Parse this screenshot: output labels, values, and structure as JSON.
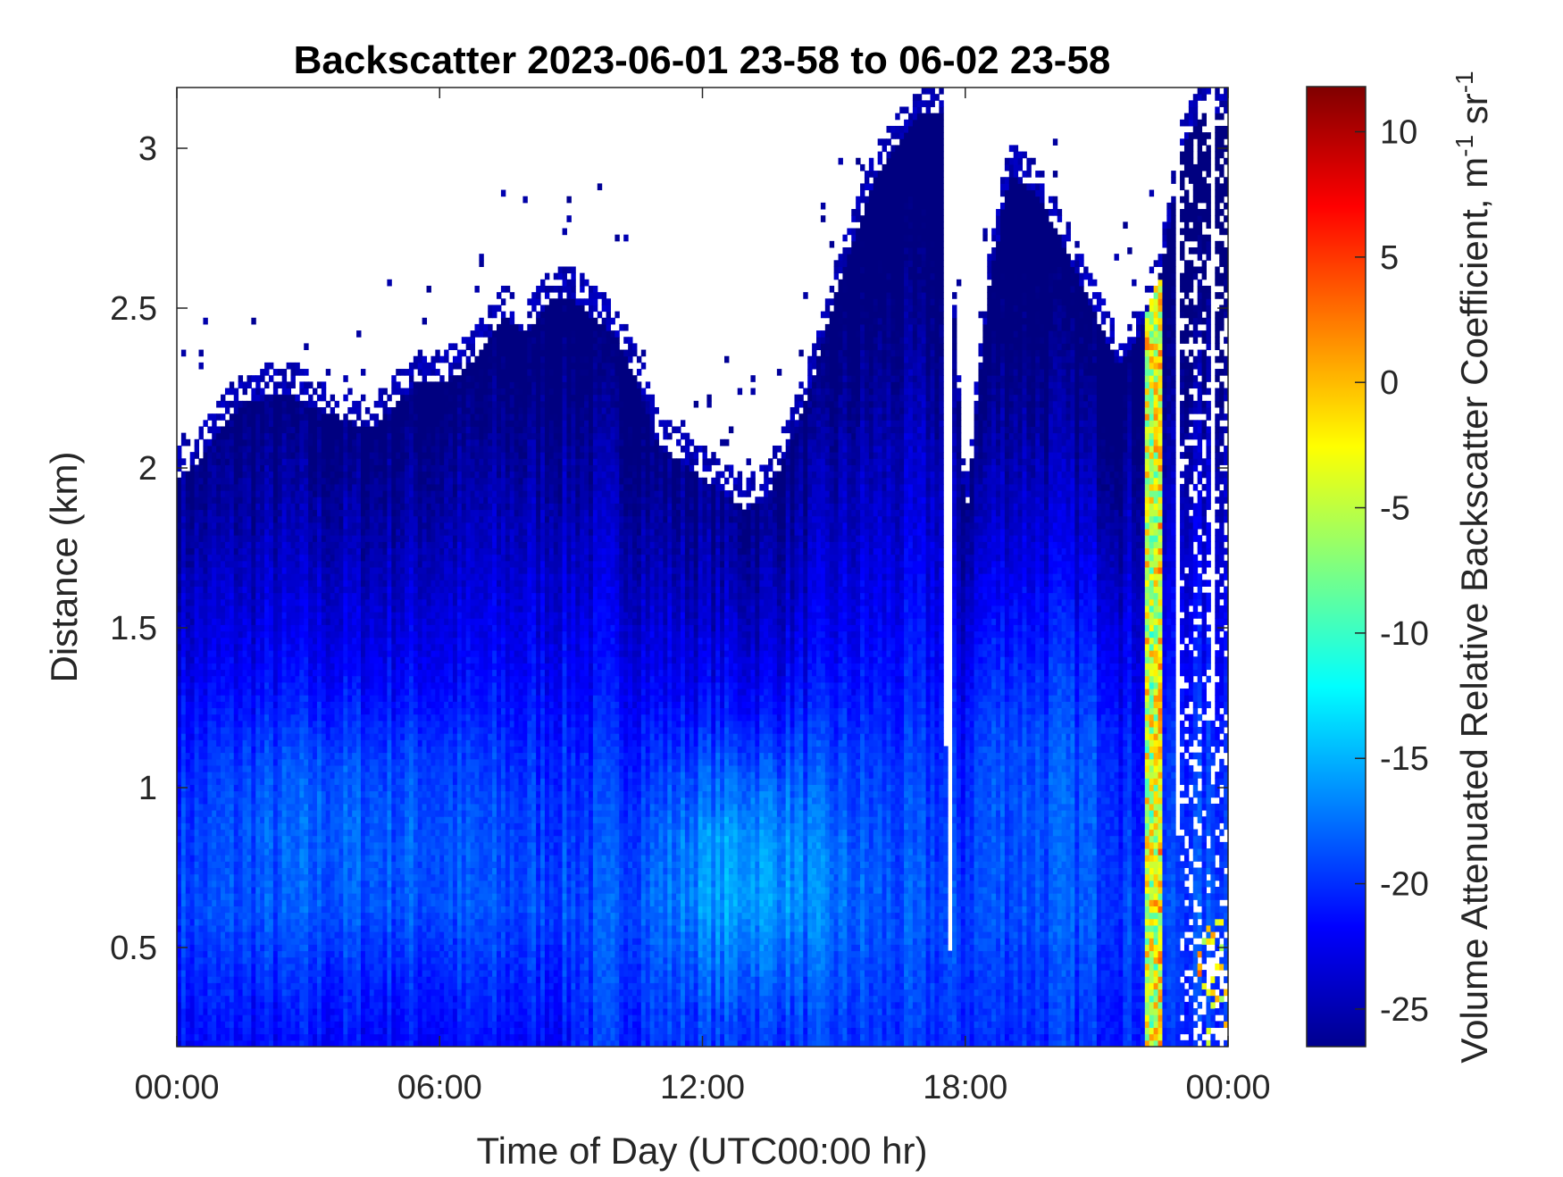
{
  "chart_data": {
    "type": "heatmap",
    "title": "Backscatter 2023-06-01 23-58 to 06-02 23-58",
    "xlabel": "Time of Day (UTC00:00 hr)",
    "ylabel": "Distance (km)",
    "xlim": [
      0,
      24
    ],
    "ylim": [
      0.19,
      3.19
    ],
    "x_ticks": [
      {
        "value": 0,
        "label": "00:00"
      },
      {
        "value": 6,
        "label": "06:00"
      },
      {
        "value": 12,
        "label": "12:00"
      },
      {
        "value": 18,
        "label": "18:00"
      },
      {
        "value": 24,
        "label": "00:00"
      }
    ],
    "y_ticks": [
      {
        "value": 0.5,
        "label": "0.5"
      },
      {
        "value": 1,
        "label": "1"
      },
      {
        "value": 1.5,
        "label": "1.5"
      },
      {
        "value": 2,
        "label": "2"
      },
      {
        "value": 2.5,
        "label": "2.5"
      },
      {
        "value": 3,
        "label": "3"
      }
    ],
    "colorbar": {
      "label": "Volume Attenuated Relative Backscatter Coefficient, m⁻¹ sr⁻¹",
      "label_main": "Volume Attenuated Relative Backscatter Coefficient, m",
      "label_sup1": "-1",
      "label_mid": " sr",
      "label_sup2": "-1",
      "colormap": "jet",
      "clim": [
        -26.5,
        11.8
      ],
      "ticks": [
        {
          "value": 10,
          "label": "10"
        },
        {
          "value": 5,
          "label": "5"
        },
        {
          "value": 0,
          "label": "0"
        },
        {
          "value": -5,
          "label": "-5"
        },
        {
          "value": -10,
          "label": "-10"
        },
        {
          "value": -15,
          "label": "-15"
        },
        {
          "value": -20,
          "label": "-20"
        },
        {
          "value": -25,
          "label": "-25"
        }
      ]
    },
    "grid": false,
    "signal_top_km": [
      [
        0,
        2.05
      ],
      [
        0.5,
        2.1
      ],
      [
        1,
        2.2
      ],
      [
        1.5,
        2.28
      ],
      [
        2,
        2.3
      ],
      [
        2.5,
        2.32
      ],
      [
        3,
        2.28
      ],
      [
        3.5,
        2.25
      ],
      [
        4,
        2.22
      ],
      [
        4.5,
        2.2
      ],
      [
        5,
        2.28
      ],
      [
        5.5,
        2.35
      ],
      [
        6,
        2.35
      ],
      [
        6.5,
        2.38
      ],
      [
        7,
        2.45
      ],
      [
        7.5,
        2.55
      ],
      [
        8,
        2.5
      ],
      [
        8.5,
        2.6
      ],
      [
        9,
        2.62
      ],
      [
        9.5,
        2.55
      ],
      [
        10,
        2.5
      ],
      [
        10.5,
        2.35
      ],
      [
        11,
        2.15
      ],
      [
        11.5,
        2.1
      ],
      [
        12,
        2.05
      ],
      [
        12.5,
        2.0
      ],
      [
        13,
        1.95
      ],
      [
        13.5,
        2.0
      ],
      [
        14,
        2.15
      ],
      [
        14.5,
        2.35
      ],
      [
        15,
        2.6
      ],
      [
        15.5,
        2.8
      ],
      [
        16,
        3.0
      ],
      [
        16.5,
        3.1
      ],
      [
        17,
        3.19
      ],
      [
        17.5,
        3.19
      ],
      [
        18,
        1.9
      ],
      [
        18.5,
        2.6
      ],
      [
        19,
        3.0
      ],
      [
        19.5,
        2.95
      ],
      [
        20,
        2.85
      ],
      [
        20.5,
        2.7
      ],
      [
        21,
        2.55
      ],
      [
        21.5,
        2.4
      ],
      [
        22,
        2.5
      ],
      [
        22.5,
        2.7
      ],
      [
        23,
        3.1
      ],
      [
        23.5,
        3.19
      ],
      [
        24,
        3.19
      ]
    ],
    "features": [
      {
        "type": "boundary-layer-max",
        "x": 13.0,
        "y": 0.78,
        "value": -13
      },
      {
        "type": "aerosol-layer",
        "x": 3.8,
        "y": 0.95,
        "value": -15
      },
      {
        "type": "precipitation-streak",
        "x": 22.4,
        "y": 2.2,
        "value": 0
      }
    ]
  }
}
